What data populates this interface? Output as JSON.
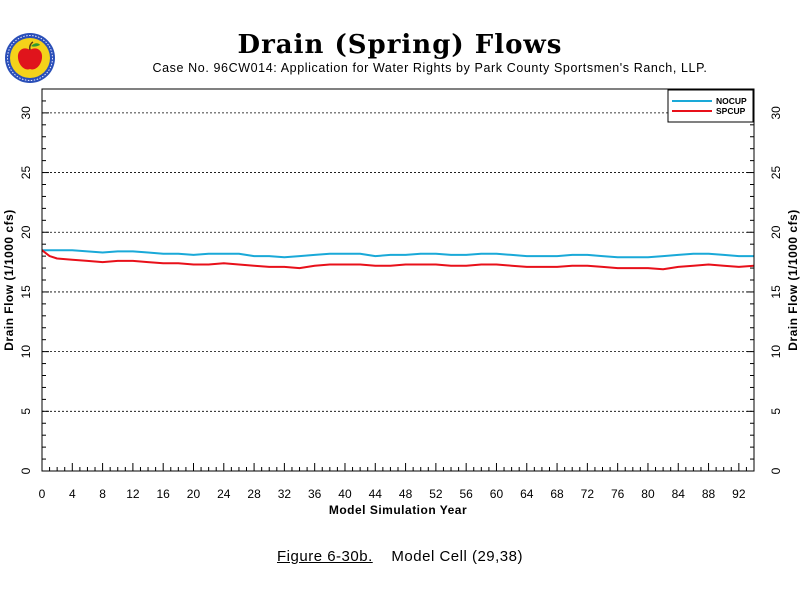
{
  "header": {
    "title": "Drain (Spring) Flows",
    "subtitle": "Case No. 96CW014: Application for Water Rights by Park County Sportsmen's Ranch, LLP."
  },
  "caption": {
    "figure": "Figure 6-30b.",
    "cell": "Model Cell (29,38)"
  },
  "chart_data": {
    "type": "line",
    "xlabel": "Model Simulation Year",
    "ylabel": "Drain Flow (1/1000 cfs)",
    "xlim": [
      0,
      94
    ],
    "ylim": [
      0,
      32
    ],
    "xticks": [
      0,
      4,
      8,
      12,
      16,
      20,
      24,
      28,
      32,
      36,
      40,
      44,
      48,
      52,
      56,
      60,
      64,
      68,
      72,
      76,
      80,
      84,
      88,
      92
    ],
    "yticks": [
      0,
      5,
      10,
      15,
      20,
      25,
      30
    ],
    "grid": "horizontal dashed",
    "legend": "top-right",
    "series": [
      {
        "name": "NOCUP",
        "color": "#1aa9d8",
        "x": [
          0,
          2,
          4,
          6,
          8,
          10,
          12,
          14,
          16,
          18,
          20,
          22,
          24,
          26,
          28,
          30,
          32,
          34,
          36,
          38,
          40,
          42,
          44,
          46,
          48,
          50,
          52,
          54,
          56,
          58,
          60,
          62,
          64,
          66,
          68,
          70,
          72,
          74,
          76,
          78,
          80,
          82,
          84,
          86,
          88,
          90,
          92,
          94
        ],
        "values": [
          18.5,
          18.5,
          18.5,
          18.4,
          18.3,
          18.4,
          18.4,
          18.3,
          18.2,
          18.2,
          18.1,
          18.2,
          18.2,
          18.2,
          18.0,
          18.0,
          17.9,
          18.0,
          18.1,
          18.2,
          18.2,
          18.2,
          18.0,
          18.1,
          18.1,
          18.2,
          18.2,
          18.1,
          18.1,
          18.2,
          18.2,
          18.1,
          18.0,
          18.0,
          18.0,
          18.1,
          18.1,
          18.0,
          17.9,
          17.9,
          17.9,
          18.0,
          18.1,
          18.2,
          18.2,
          18.1,
          18.0,
          18.0
        ]
      },
      {
        "name": "SPCUP",
        "color": "#e8101a",
        "x": [
          0,
          1,
          2,
          4,
          6,
          8,
          10,
          12,
          14,
          16,
          18,
          20,
          22,
          24,
          26,
          28,
          30,
          32,
          34,
          36,
          38,
          40,
          42,
          44,
          46,
          48,
          50,
          52,
          54,
          56,
          58,
          60,
          62,
          64,
          66,
          68,
          70,
          72,
          74,
          76,
          78,
          80,
          82,
          84,
          86,
          88,
          90,
          92,
          94
        ],
        "values": [
          18.5,
          18.0,
          17.8,
          17.7,
          17.6,
          17.5,
          17.6,
          17.6,
          17.5,
          17.4,
          17.4,
          17.3,
          17.3,
          17.4,
          17.3,
          17.2,
          17.1,
          17.1,
          17.0,
          17.2,
          17.3,
          17.3,
          17.3,
          17.2,
          17.2,
          17.3,
          17.3,
          17.3,
          17.2,
          17.2,
          17.3,
          17.3,
          17.2,
          17.1,
          17.1,
          17.1,
          17.2,
          17.2,
          17.1,
          17.0,
          17.0,
          17.0,
          16.9,
          17.1,
          17.2,
          17.3,
          17.2,
          17.1,
          17.2
        ]
      }
    ]
  }
}
